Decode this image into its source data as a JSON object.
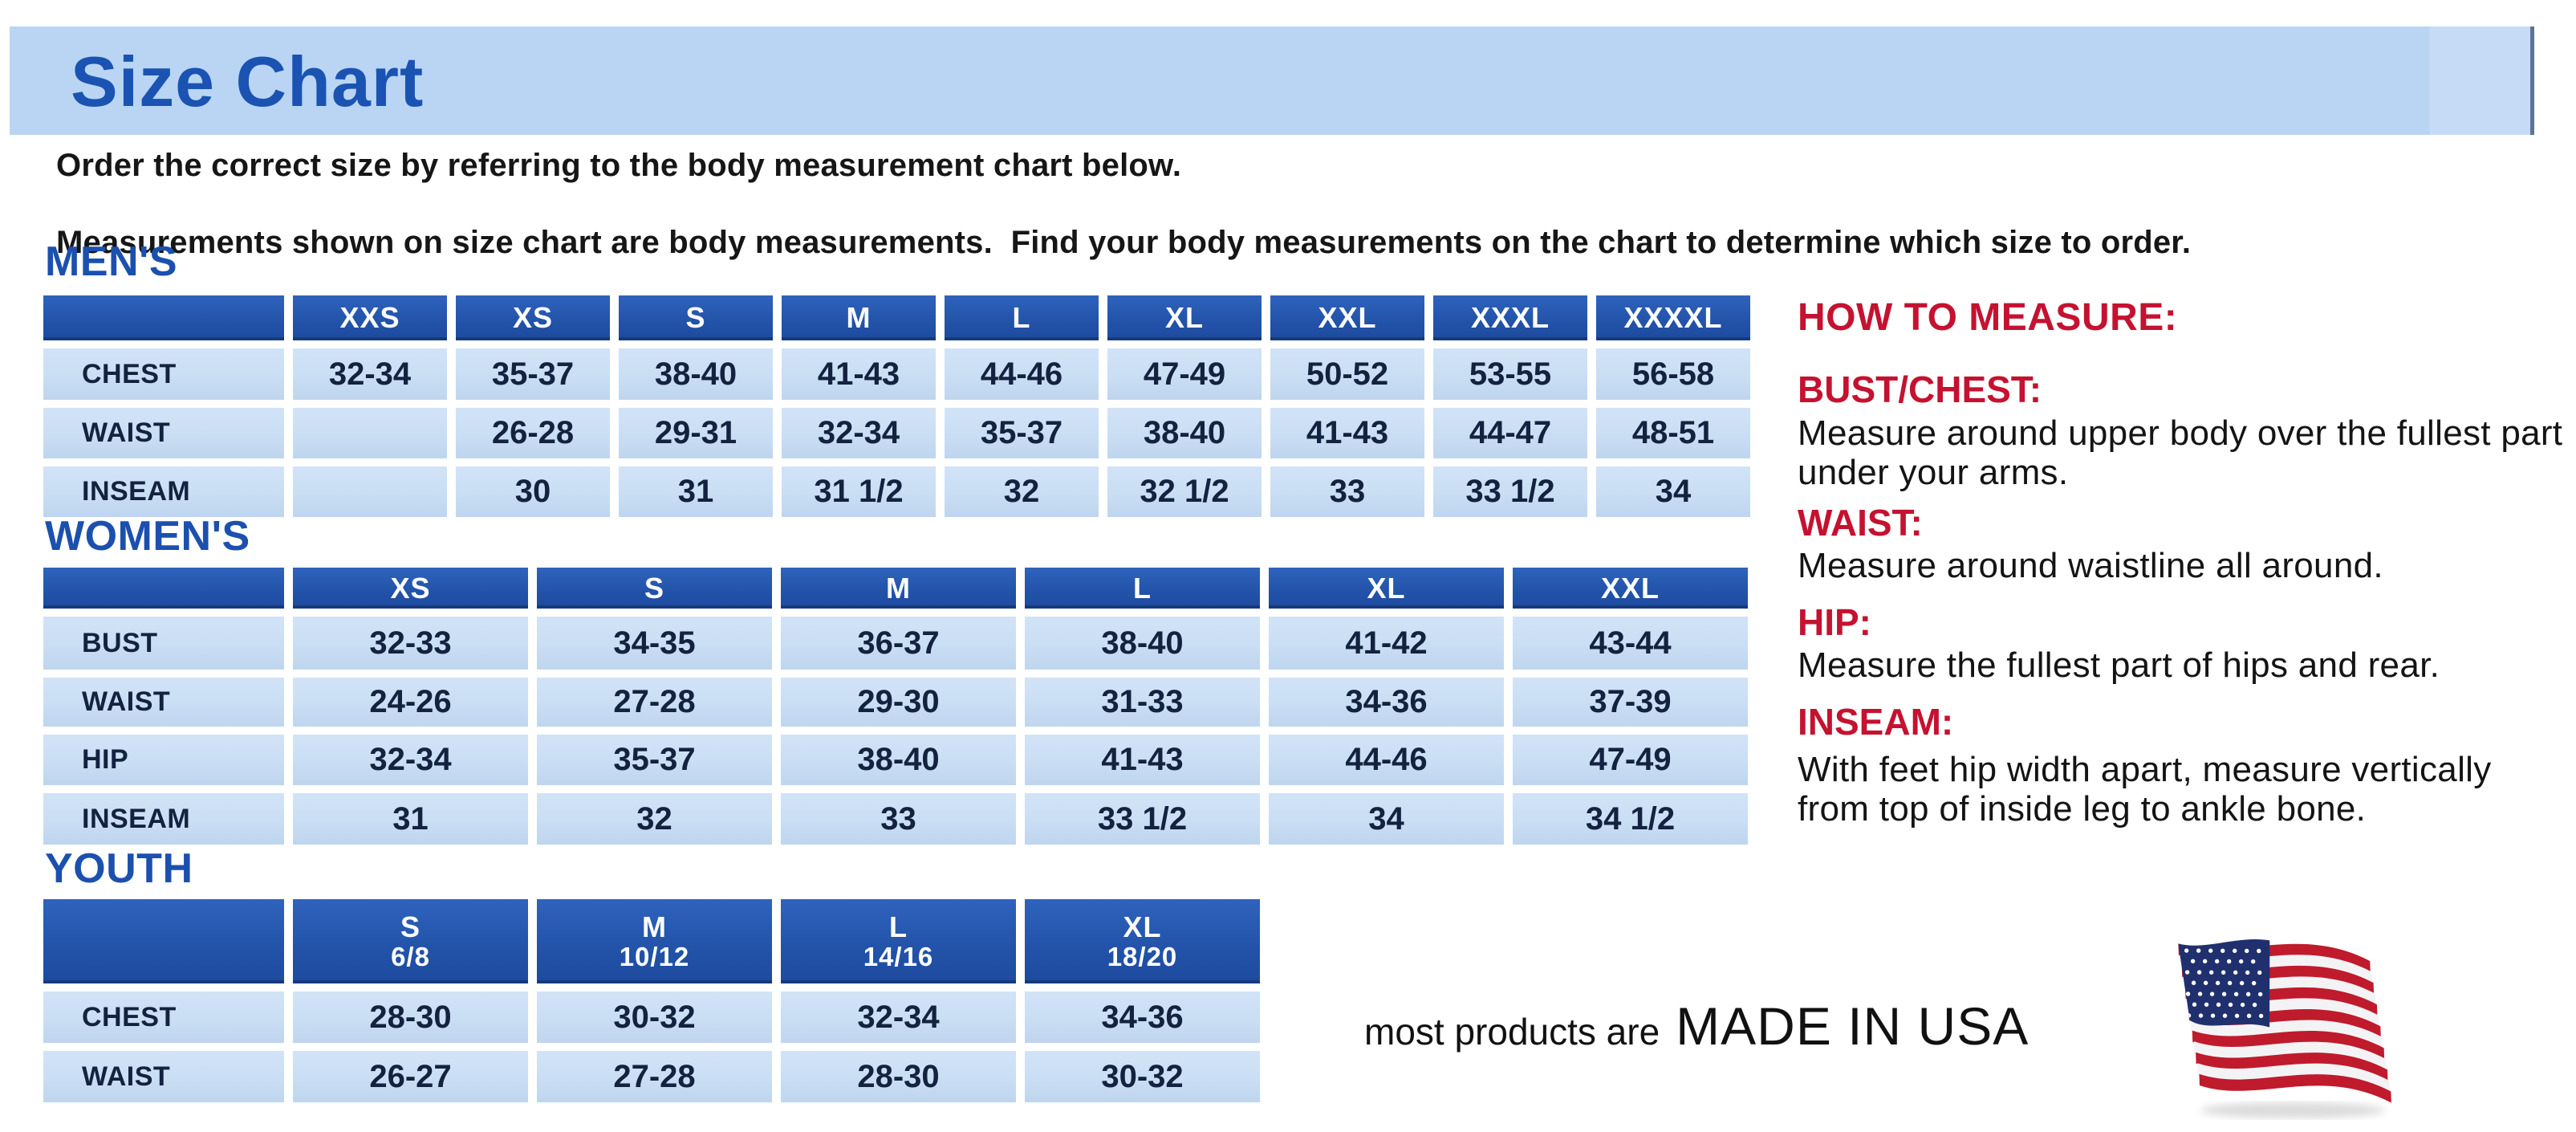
{
  "header": {
    "title": "Size Chart"
  },
  "intro": {
    "line1": "Order the correct size by referring to the body measurement chart below.",
    "line2": "Measurements shown on size chart are body measurements.  Find your body measurements on the chart to determine which size to order."
  },
  "tables": [
    {
      "id": "mens",
      "heading": "MEN'S",
      "columns": [
        "XXS",
        "XS",
        "S",
        "M",
        "L",
        "XL",
        "XXL",
        "XXXL",
        "XXXXL"
      ],
      "rows": [
        {
          "label": "CHEST",
          "values": [
            "32-34",
            "35-37",
            "38-40",
            "41-43",
            "44-46",
            "47-49",
            "50-52",
            "53-55",
            "56-58"
          ]
        },
        {
          "label": "WAIST",
          "values": [
            "",
            "26-28",
            "29-31",
            "32-34",
            "35-37",
            "38-40",
            "41-43",
            "44-47",
            "48-51"
          ]
        },
        {
          "label": "INSEAM",
          "values": [
            "",
            "30",
            "31",
            "31 1/2",
            "32",
            "32 1/2",
            "33",
            "33 1/2",
            "34"
          ]
        }
      ]
    },
    {
      "id": "womens",
      "heading": "WOMEN'S",
      "columns": [
        "XS",
        "S",
        "M",
        "L",
        "XL",
        "XXL"
      ],
      "rows": [
        {
          "label": "BUST",
          "values": [
            "32-33",
            "34-35",
            "36-37",
            "38-40",
            "41-42",
            "43-44"
          ]
        },
        {
          "label": "WAIST",
          "values": [
            "24-26",
            "27-28",
            "29-30",
            "31-33",
            "34-36",
            "37-39"
          ]
        },
        {
          "label": "HIP",
          "values": [
            "32-34",
            "35-37",
            "38-40",
            "41-43",
            "44-46",
            "47-49"
          ]
        },
        {
          "label": "INSEAM",
          "values": [
            "31",
            "32",
            "33",
            "33 1/2",
            "34",
            "34 1/2"
          ]
        }
      ]
    },
    {
      "id": "youth",
      "heading": "YOUTH",
      "columns": [
        {
          "label": "S",
          "sublabel": "6/8"
        },
        {
          "label": "M",
          "sublabel": "10/12"
        },
        {
          "label": "L",
          "sublabel": "14/16"
        },
        {
          "label": "XL",
          "sublabel": "18/20"
        }
      ],
      "rows": [
        {
          "label": "CHEST",
          "values": [
            "28-30",
            "30-32",
            "32-34",
            "34-36"
          ]
        },
        {
          "label": "WAIST",
          "values": [
            "26-27",
            "27-28",
            "28-30",
            "30-32"
          ]
        }
      ]
    }
  ],
  "how_to_measure": {
    "title": "HOW TO MEASURE:",
    "items": [
      {
        "label": "BUST/CHEST:",
        "text": "Measure around upper body over the fullest part under your arms."
      },
      {
        "label": "WAIST:",
        "text": "Measure around waistline all around."
      },
      {
        "label": "HIP:",
        "text": "Measure the fullest part of hips and rear."
      },
      {
        "label": "INSEAM:",
        "text": "With feet hip width apart, measure vertically from top of inside leg to ankle bone."
      }
    ]
  },
  "made_in_usa": {
    "prefix": "most products are",
    "label": "MADE IN USA",
    "flag_icon": "us-flag"
  },
  "colors": {
    "title_bar_bg": "#b9d5f3",
    "heading_blue": "#1b50ae",
    "table_header_bg": "#2456ac",
    "table_cell_bg": "#c9def4",
    "cell_text_navy": "#13223e",
    "accent_red": "#c41230",
    "flag_red": "#bf1b2c",
    "flag_navy": "#20306e"
  }
}
